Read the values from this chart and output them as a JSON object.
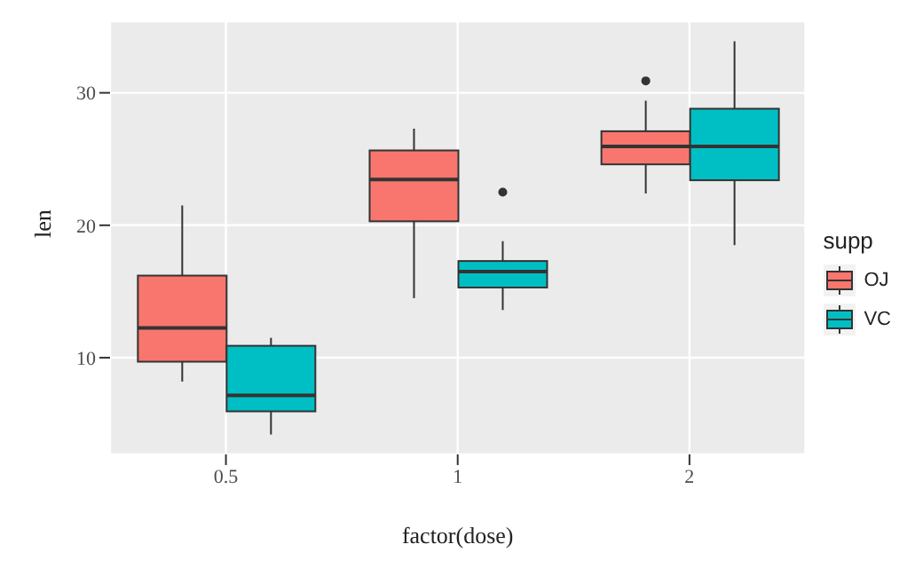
{
  "chart_data": {
    "type": "box",
    "xlabel": "factor(dose)",
    "ylabel": "len",
    "legend_title": "supp",
    "categories": [
      "0.5",
      "1",
      "2"
    ],
    "series": [
      {
        "name": "OJ",
        "color": "#f8766d",
        "boxes": [
          {
            "low": 8.2,
            "q1": 9.7,
            "median": 12.25,
            "q3": 16.2,
            "high": 21.5
          },
          {
            "low": 14.5,
            "q1": 20.3,
            "median": 23.45,
            "q3": 25.65,
            "high": 27.3
          },
          {
            "low": 22.4,
            "q1": 24.6,
            "median": 25.95,
            "q3": 27.1,
            "high": 29.4,
            "outliers": [
              30.9
            ]
          }
        ]
      },
      {
        "name": "VC",
        "color": "#00bfc4",
        "boxes": [
          {
            "low": 4.2,
            "q1": 5.95,
            "median": 7.15,
            "q3": 10.9,
            "high": 11.5
          },
          {
            "low": 13.6,
            "q1": 15.3,
            "median": 16.5,
            "q3": 17.3,
            "high": 18.8,
            "outliers": [
              22.5
            ]
          },
          {
            "low": 18.5,
            "q1": 23.4,
            "median": 25.95,
            "q3": 28.8,
            "high": 33.9
          }
        ]
      }
    ],
    "ylim": [
      2.7,
      35.4
    ],
    "yticks": [
      10,
      20,
      30
    ],
    "grid": true,
    "legend": "right"
  }
}
